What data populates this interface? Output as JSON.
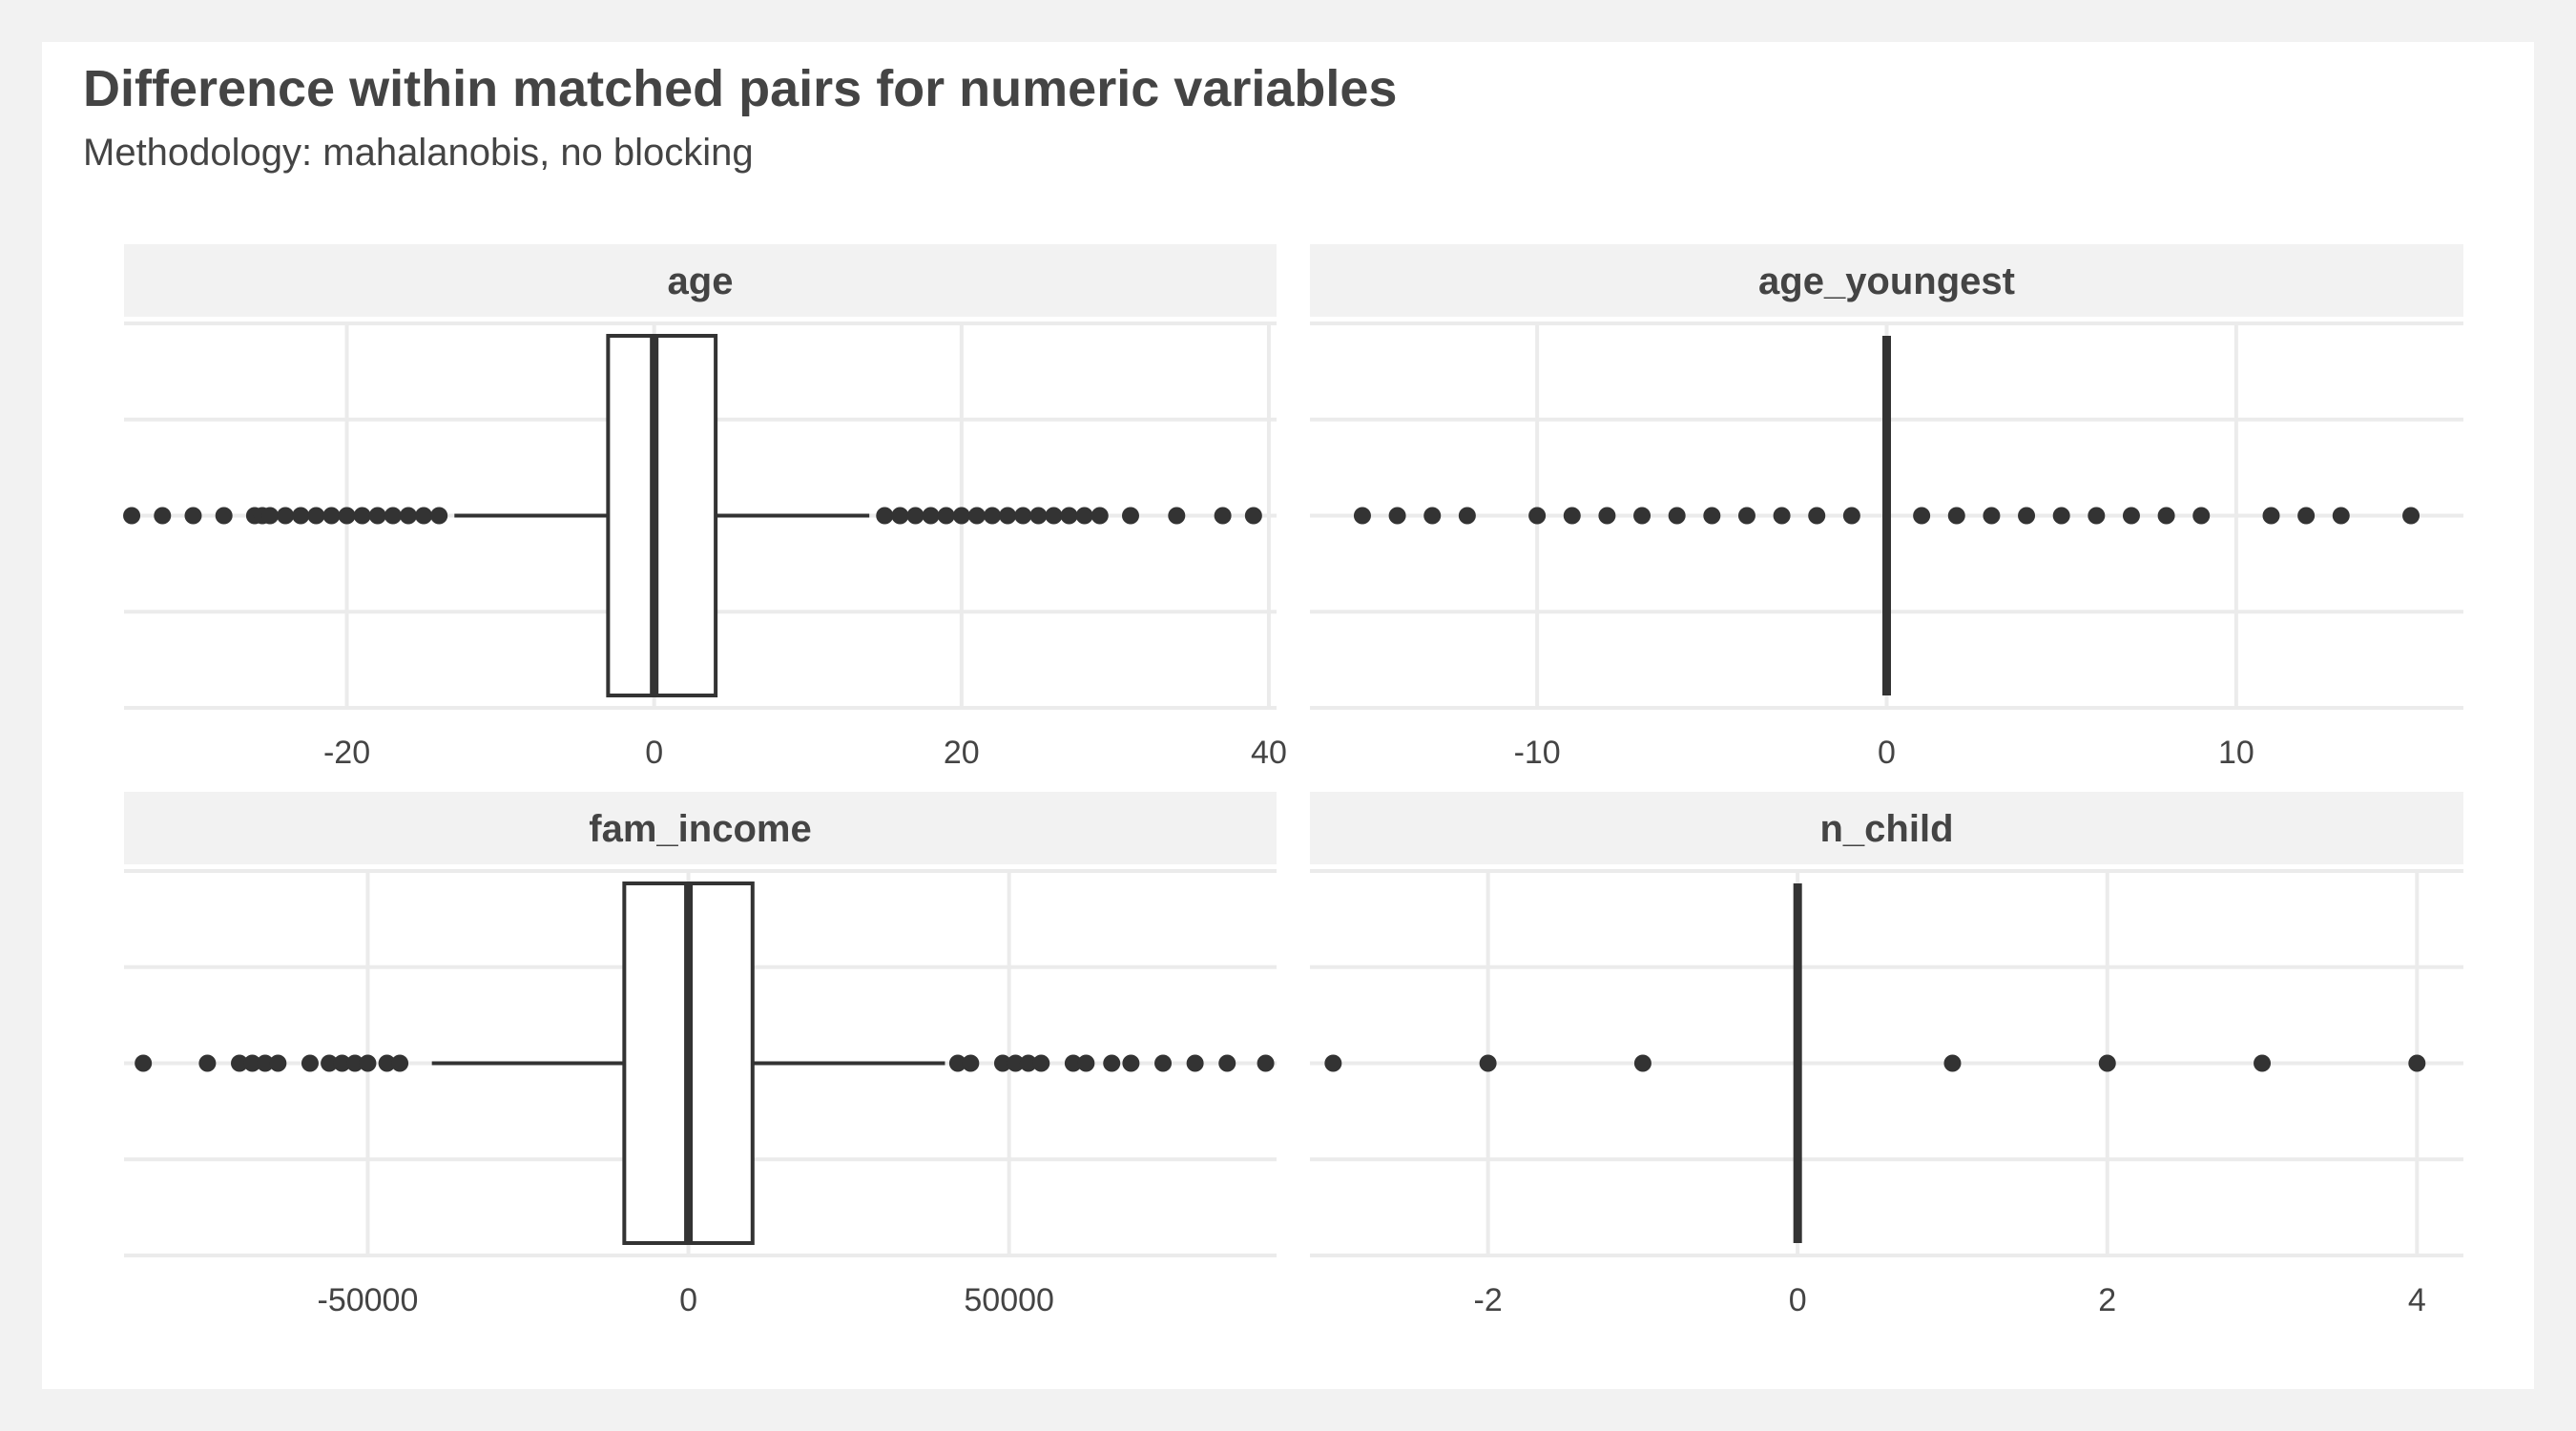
{
  "header": {
    "title": "Difference within matched pairs for numeric variables",
    "subtitle": "Methodology: mahalanobis, no blocking"
  },
  "colors": {
    "background": "#f2f2f2",
    "panel": "#ffffff",
    "strip": "#f2f2f2",
    "grid": "#ebebeb",
    "ink": "#333333",
    "text": "#444444"
  },
  "chart_data": [
    {
      "type": "boxplot",
      "facet": "age",
      "xlim": [
        -34.5,
        40.5
      ],
      "ticks": [
        -20,
        0,
        20,
        40
      ],
      "tick_labels": [
        "-20",
        "0",
        "20",
        "40"
      ],
      "box": {
        "q1": -3,
        "median": 0,
        "q3": 4,
        "whisker_low": -13,
        "whisker_high": 14
      },
      "outliers": [
        -34,
        -32,
        -30,
        -28,
        -26,
        -25.5,
        -25,
        -24,
        -23,
        -22,
        -21,
        -20,
        -19,
        -18,
        -17,
        -16,
        -15,
        -14,
        15,
        16,
        17,
        18,
        19,
        20,
        21,
        22,
        23,
        24,
        25,
        26,
        27,
        28,
        29,
        31,
        34,
        37,
        39
      ]
    },
    {
      "type": "boxplot",
      "facet": "age_youngest",
      "xlim": [
        -16.5,
        16.5
      ],
      "ticks": [
        -10,
        0,
        10
      ],
      "tick_labels": [
        "-10",
        "0",
        "10"
      ],
      "box": {
        "q1": 0,
        "median": 0,
        "q3": 0,
        "whisker_low": 0,
        "whisker_high": 0
      },
      "outliers": [
        -15,
        -14,
        -13,
        -12,
        -10,
        -9,
        -8,
        -7,
        -6,
        -5,
        -4,
        -3,
        -2,
        -1,
        1,
        2,
        3,
        4,
        5,
        6,
        7,
        8,
        9,
        11,
        12,
        13,
        15
      ]
    },
    {
      "type": "boxplot",
      "facet": "fam_income",
      "xlim": [
        -88000,
        91700
      ],
      "ticks": [
        -50000,
        0,
        50000
      ],
      "tick_labels": [
        "-50000",
        "0",
        "50000"
      ],
      "box": {
        "q1": -10000,
        "median": 0,
        "q3": 10000,
        "whisker_low": -40000,
        "whisker_high": 40000
      },
      "outliers": [
        -85000,
        -75000,
        -70000,
        -68000,
        -66000,
        -64000,
        -59000,
        -56000,
        -54000,
        -52000,
        -50000,
        -47000,
        -45000,
        42000,
        44000,
        49000,
        51000,
        53000,
        55000,
        60000,
        62000,
        66000,
        69000,
        74000,
        79000,
        84000,
        90000
      ]
    },
    {
      "type": "boxplot",
      "facet": "n_child",
      "xlim": [
        -3.15,
        4.3
      ],
      "ticks": [
        -2,
        0,
        2,
        4
      ],
      "tick_labels": [
        "-2",
        "0",
        "2",
        "4"
      ],
      "box": {
        "q1": 0,
        "median": 0,
        "q3": 0,
        "whisker_low": 0,
        "whisker_high": 0
      },
      "outliers": [
        -3,
        -2,
        -1,
        1,
        2,
        3,
        4
      ]
    }
  ]
}
